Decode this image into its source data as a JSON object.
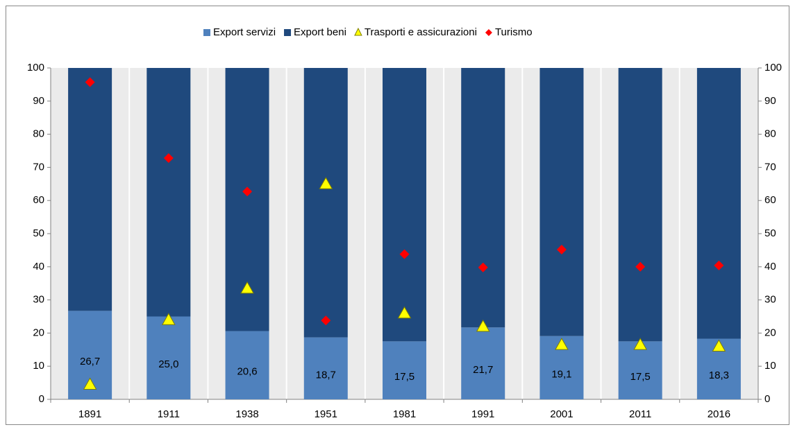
{
  "chart_data": {
    "type": "bar",
    "stacked": true,
    "categories": [
      "1891",
      "1911",
      "1938",
      "1951",
      "1981",
      "1991",
      "2001",
      "2011",
      "2016"
    ],
    "series": [
      {
        "name": "Export servizi",
        "color": "#4f81bd",
        "values": [
          26.7,
          25.0,
          20.6,
          18.7,
          17.5,
          21.7,
          19.1,
          17.5,
          18.3
        ],
        "value_labels": [
          "26,7",
          "25,0",
          "20,6",
          "18,7",
          "17,5",
          "21,7",
          "19,1",
          "17,5",
          "18,3"
        ]
      },
      {
        "name": "Export beni",
        "color": "#1f497d",
        "values": [
          73.3,
          75.0,
          79.4,
          81.3,
          82.5,
          78.3,
          80.9,
          82.5,
          81.7
        ]
      },
      {
        "name": "Trasporti e assicurazioni",
        "color": "#ffff00",
        "marker": "triangle",
        "axis": "y2",
        "values": [
          4.5,
          24,
          33.5,
          65,
          26,
          22,
          16.5,
          16.5,
          16
        ]
      },
      {
        "name": "Turismo",
        "color": "#ff0000",
        "marker": "diamond",
        "axis": "y2",
        "values": [
          95.7,
          72.8,
          62.7,
          23.8,
          43.8,
          39.8,
          45.2,
          40,
          40.4
        ]
      }
    ],
    "ylim": [
      0,
      100
    ],
    "yticks": [
      0,
      10,
      20,
      30,
      40,
      50,
      60,
      70,
      80,
      90,
      100
    ],
    "y2lim": [
      0,
      100
    ],
    "y2ticks": [
      0,
      10,
      20,
      30,
      40,
      50,
      60,
      70,
      80,
      90,
      100
    ],
    "legend": "top"
  }
}
